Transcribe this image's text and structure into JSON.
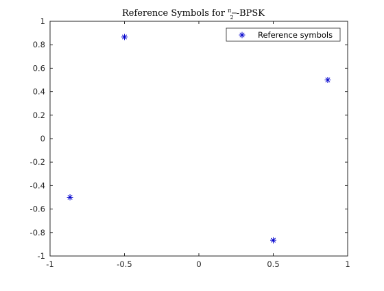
{
  "chart_data": {
    "type": "scatter",
    "title_prefix": "Reference Symbols for ",
    "title_fraction_numerator": "π",
    "title_fraction_denominator": "2",
    "title_suffix": "-BPSK",
    "xlabel": "",
    "ylabel": "",
    "xlim": [
      -1,
      1
    ],
    "ylim": [
      -1,
      1
    ],
    "xticks": [
      -1,
      -0.5,
      0,
      0.5,
      1
    ],
    "xtick_labels": [
      "-1",
      "-0.5",
      "0",
      "0.5",
      "1"
    ],
    "yticks": [
      -1,
      -0.8,
      -0.6,
      -0.4,
      -0.2,
      0,
      0.2,
      0.4,
      0.6,
      0.8,
      1
    ],
    "ytick_labels": [
      "-1",
      "-0.8",
      "-0.6",
      "-0.4",
      "-0.2",
      "0",
      "0.2",
      "0.4",
      "0.6",
      "0.8",
      "1"
    ],
    "grid": false,
    "legend_position": "top-right",
    "series": [
      {
        "name": "Reference symbols",
        "marker": "asterisk",
        "color": "#0000cc",
        "x": [
          0.866,
          -0.5,
          -0.866,
          0.5
        ],
        "y": [
          0.5,
          0.866,
          -0.5,
          -0.866
        ]
      }
    ]
  }
}
